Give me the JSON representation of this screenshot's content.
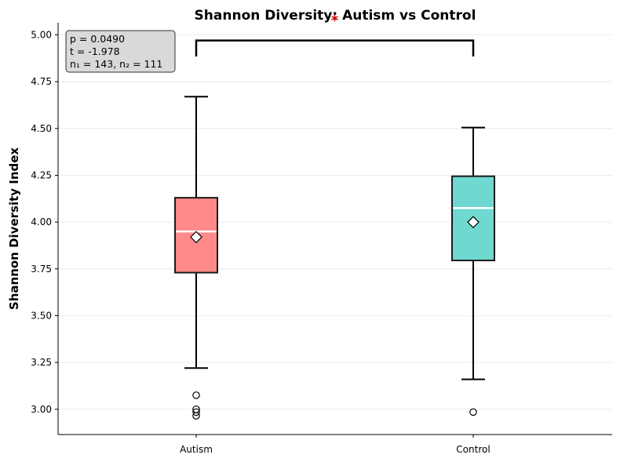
{
  "chart_data": {
    "type": "box",
    "title": "Shannon Diversity: Autism vs Control",
    "ylabel": "Shannon Diversity Index",
    "xlabel": "",
    "ylim": [
      2.865,
      5.065
    ],
    "yticks": [
      "3.00",
      "3.25",
      "3.50",
      "3.75",
      "4.00",
      "4.25",
      "4.50",
      "4.75",
      "5.00"
    ],
    "grid": "horizontal",
    "categories": [
      "Autism",
      "Control"
    ],
    "groups": [
      {
        "name": "Autism",
        "color": "#FF8A8A",
        "whisker_low": 3.22,
        "q1": 3.73,
        "median": 3.95,
        "q3": 4.13,
        "whisker_high": 4.67,
        "mean": 3.92,
        "outliers": [
          3.075,
          3.0,
          2.985,
          2.965
        ]
      },
      {
        "name": "Control",
        "color": "#6FD8D0",
        "whisker_low": 3.16,
        "q1": 3.795,
        "median": 4.075,
        "q3": 4.245,
        "whisker_high": 4.505,
        "mean": 4.0,
        "outliers": [
          2.985
        ]
      }
    ],
    "significance": {
      "label": "*",
      "bracket_y": 4.97,
      "bracket_tick_y": 4.885,
      "color": "#cc0000"
    },
    "stats_box": {
      "lines": [
        "p = 0.0490",
        "t = -1.978",
        "n₁ = 143, n₂ = 111"
      ]
    }
  }
}
